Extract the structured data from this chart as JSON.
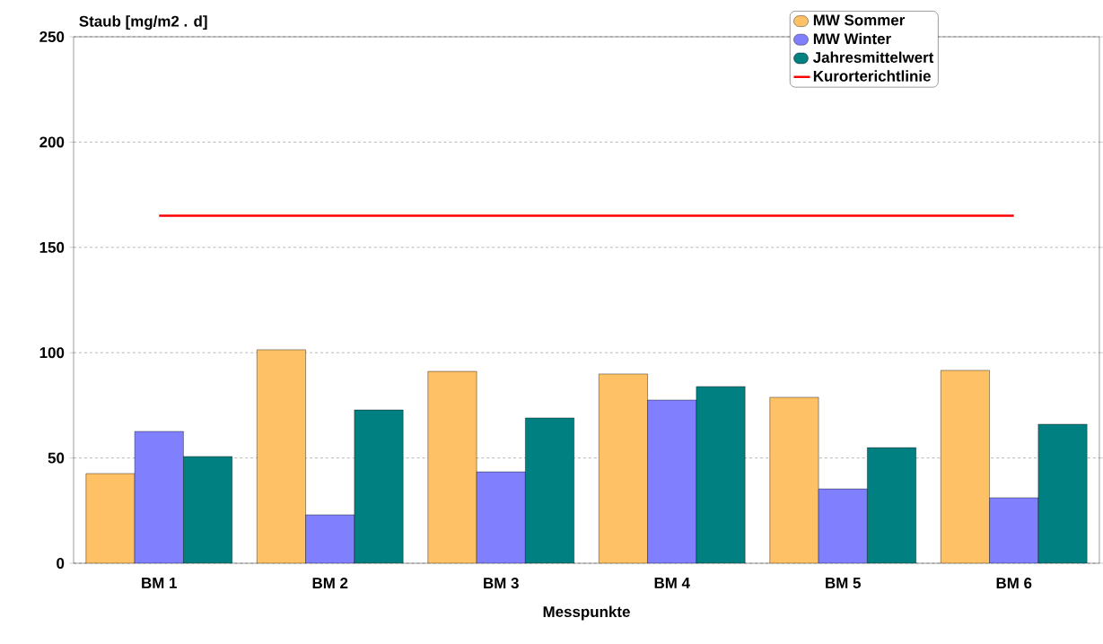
{
  "chart_data": {
    "type": "bar",
    "ylabel": "Staub [mg/m2 . d]",
    "xlabel": "Messpunkte",
    "categories": [
      "BM 1",
      "BM 2",
      "BM 3",
      "BM 4",
      "BM 5",
      "BM 6"
    ],
    "series": [
      {
        "name": "MW Sommer",
        "color": "#ffc166",
        "values": [
          42.6,
          101.4,
          91.1,
          89.9,
          78.8,
          91.6
        ]
      },
      {
        "name": "MW Winter",
        "color": "#8080ff",
        "values": [
          62.6,
          23,
          43.4,
          77.5,
          35.3,
          31.1
        ]
      },
      {
        "name": "Jahresmittelwert",
        "color": "#008080",
        "values": [
          50.7,
          72.8,
          69,
          83.9,
          54.9,
          66
        ]
      }
    ],
    "ref_lines": [
      {
        "axis": "y",
        "value": 165,
        "label": "Kurorterichtlinie",
        "color": "#ff0000"
      }
    ],
    "ylim": [
      0,
      250
    ],
    "yticks": [
      0,
      50,
      100,
      150,
      200,
      250
    ],
    "grid": "y",
    "legend": "top right"
  }
}
